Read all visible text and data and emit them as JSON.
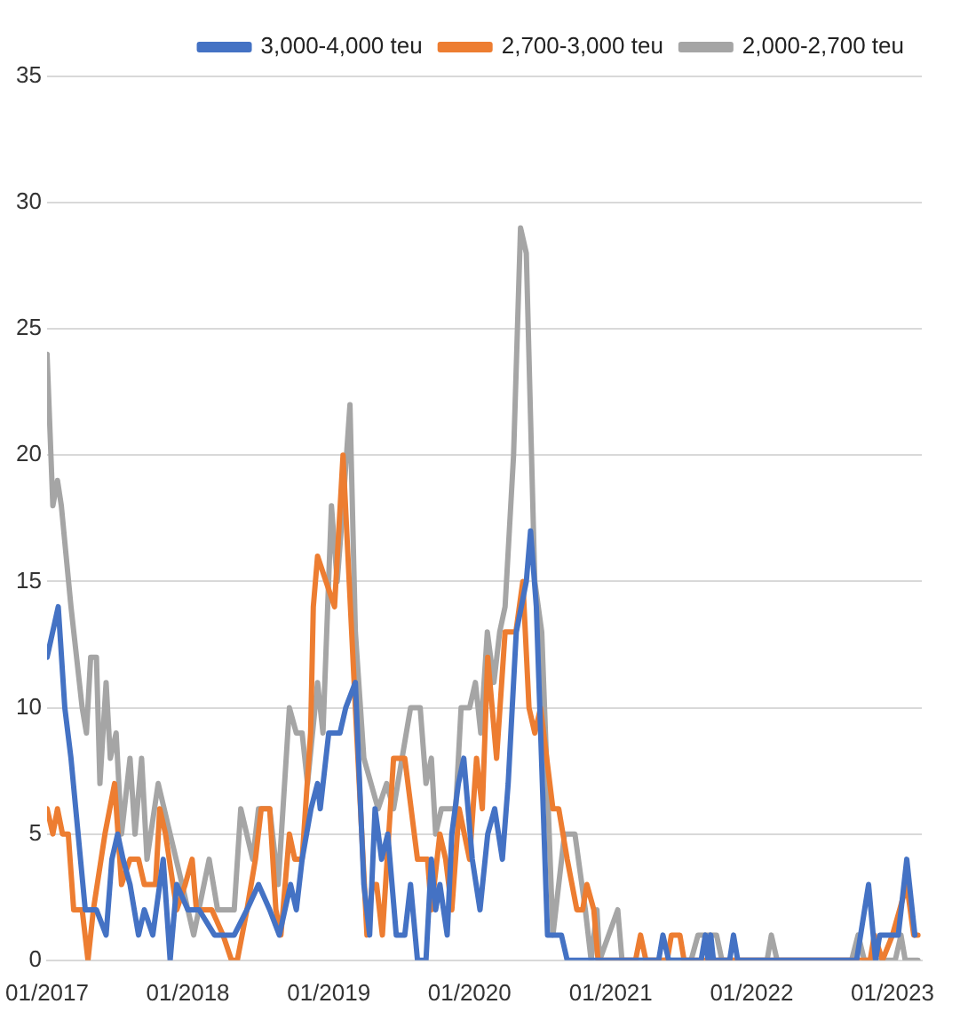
{
  "chart_data": {
    "type": "line",
    "legend": "top right",
    "grid": "y",
    "marker": "none",
    "line_style": "solid",
    "xlim": [
      "2017-01",
      "2023-03-18"
    ],
    "xticks": [
      {
        "value": "2017-01",
        "label": "01/2017"
      },
      {
        "value": "2018-01",
        "label": "01/2018"
      },
      {
        "value": "2019-01",
        "label": "01/2019"
      },
      {
        "value": "2020-01",
        "label": "01/2020"
      },
      {
        "value": "2021-01",
        "label": "01/2021"
      },
      {
        "value": "2022-01",
        "label": "01/2022"
      },
      {
        "value": "2023-01",
        "label": "01/2023"
      }
    ],
    "ylim": [
      0,
      35
    ],
    "yticks": [
      0,
      5,
      10,
      15,
      20,
      25,
      30,
      35
    ],
    "series": [
      {
        "name": "3,000-4,000 teu",
        "color": "#4472c4",
        "x": [
          "2017-01-01",
          "2017-01-30",
          "2017-02-16",
          "2017-03-04",
          "2017-04-10",
          "2017-05-09",
          "2017-06-03",
          "2017-06-18",
          "2017-07-03",
          "2017-07-17",
          "2017-08-04",
          "2017-08-26",
          "2017-09-10",
          "2017-10-02",
          "2017-10-29",
          "2017-11-16",
          "2017-12-03",
          "2018-01-01",
          "2018-01-30",
          "2018-03-11",
          "2018-05-01",
          "2018-06-03",
          "2018-07-03",
          "2018-08-01",
          "2018-08-26",
          "2018-09-24",
          "2018-10-09",
          "2018-10-24",
          "2018-11-16",
          "2018-12-03",
          "2018-12-10",
          "2019-01-01",
          "2019-01-30",
          "2019-02-14",
          "2019-03-11",
          "2019-04-02",
          "2019-04-17",
          "2019-05-01",
          "2019-05-18",
          "2019-06-03",
          "2019-06-25",
          "2019-07-17",
          "2019-08-01",
          "2019-08-19",
          "2019-09-10",
          "2019-09-24",
          "2019-10-05",
          "2019-10-16",
          "2019-11-04",
          "2019-11-16",
          "2019-12-03",
          "2019-12-17",
          "2020-01-08",
          "2020-01-28",
          "2020-02-17",
          "2020-03-06",
          "2020-03-26",
          "2020-04-10",
          "2020-05-01",
          "2020-05-27",
          "2020-06-07",
          "2020-06-22",
          "2020-07-21",
          "2020-08-26",
          "2020-09-10",
          "2021-05-05",
          "2021-05-16",
          "2021-05-31",
          "2021-08-23",
          "2021-09-03",
          "2021-09-10",
          "2021-09-17",
          "2021-09-24",
          "2021-11-05",
          "2021-11-15",
          "2021-11-26",
          "2022-09-30",
          "2022-10-31",
          "2022-11-18",
          "2022-11-29",
          "2023-01-16",
          "2023-02-07",
          "2023-02-28"
        ],
        "values": [
          12,
          14,
          10,
          8,
          2,
          2,
          1,
          4,
          5,
          4,
          3,
          1,
          2,
          1,
          4,
          0,
          3,
          2,
          2,
          1,
          1,
          2,
          3,
          2,
          1,
          3,
          2,
          4,
          6,
          7,
          6,
          9,
          9,
          10,
          11,
          3,
          1,
          6,
          4,
          5,
          1,
          1,
          3,
          0,
          0,
          4,
          2,
          3,
          1,
          5,
          7,
          8,
          4,
          2,
          5,
          6,
          4,
          7,
          13,
          15,
          17,
          14,
          1,
          1,
          0,
          0,
          1,
          0,
          0,
          1,
          0,
          1,
          0,
          0,
          1,
          0,
          0,
          3,
          0,
          1,
          1,
          4,
          1
        ]
      },
      {
        "name": "2,700-3,000 teu",
        "color": "#ed7d31",
        "x": [
          "2017-01-01",
          "2017-01-16",
          "2017-01-28",
          "2017-02-10",
          "2017-02-25",
          "2017-03-11",
          "2017-04-02",
          "2017-04-17",
          "2017-05-01",
          "2017-05-31",
          "2017-06-25",
          "2017-07-13",
          "2017-08-04",
          "2017-08-26",
          "2017-09-10",
          "2017-10-09",
          "2017-10-20",
          "2017-11-04",
          "2017-12-03",
          "2017-12-25",
          "2018-01-12",
          "2018-01-23",
          "2018-03-04",
          "2018-04-02",
          "2018-04-24",
          "2018-05-09",
          "2018-06-03",
          "2018-06-25",
          "2018-07-10",
          "2018-08-01",
          "2018-08-17",
          "2018-08-30",
          "2018-09-21",
          "2018-10-05",
          "2018-10-24",
          "2018-11-15",
          "2018-11-22",
          "2018-12-03",
          "2018-12-25",
          "2019-01-16",
          "2019-02-07",
          "2019-03-11",
          "2019-04-10",
          "2019-04-24",
          "2019-05-05",
          "2019-05-20",
          "2019-06-18",
          "2019-07-17",
          "2019-08-19",
          "2019-09-14",
          "2019-09-24",
          "2019-10-16",
          "2019-10-31",
          "2019-11-16",
          "2019-12-05",
          "2020-01-01",
          "2020-01-19",
          "2020-02-03",
          "2020-02-17",
          "2020-03-11",
          "2020-04-02",
          "2020-04-30",
          "2020-05-18",
          "2020-06-03",
          "2020-06-18",
          "2020-07-03",
          "2020-08-04",
          "2020-08-19",
          "2020-09-10",
          "2020-10-05",
          "2020-10-20",
          "2020-10-31",
          "2020-11-18",
          "2020-11-29",
          "2021-03-06",
          "2021-03-19",
          "2021-04-02",
          "2021-05-27",
          "2021-06-07",
          "2021-06-29",
          "2021-07-10",
          "2022-11-04",
          "2022-11-15",
          "2022-12-06",
          "2023-01-01",
          "2023-02-07",
          "2023-02-25",
          "2023-03-08"
        ],
        "values": [
          6,
          5,
          6,
          5,
          5,
          2,
          2,
          0,
          2,
          5,
          7,
          3,
          4,
          4,
          3,
          3,
          6,
          5,
          2,
          3,
          4,
          2,
          2,
          1,
          0,
          0,
          2,
          4,
          6,
          6,
          2,
          1,
          5,
          4,
          4,
          9,
          14,
          16,
          15,
          14,
          20,
          10,
          1,
          3,
          3,
          1,
          8,
          8,
          4,
          4,
          2,
          5,
          4,
          2,
          6,
          4,
          8,
          6,
          12,
          8,
          13,
          13,
          15,
          10,
          9,
          10,
          6,
          6,
          4,
          2,
          2,
          3,
          2,
          0,
          0,
          1,
          0,
          0,
          1,
          1,
          0,
          0,
          1,
          0,
          1,
          3,
          1,
          1
        ]
      },
      {
        "name": "2,000-2,700 teu",
        "color": "#a5a5a5",
        "x": [
          "2017-01-01",
          "2017-01-16",
          "2017-01-28",
          "2017-02-07",
          "2017-03-04",
          "2017-04-02",
          "2017-04-13",
          "2017-04-24",
          "2017-05-09",
          "2017-05-18",
          "2017-06-03",
          "2017-06-14",
          "2017-06-29",
          "2017-07-13",
          "2017-08-04",
          "2017-08-17",
          "2017-09-03",
          "2017-09-17",
          "2017-10-16",
          "2017-11-16",
          "2017-12-17",
          "2018-01-16",
          "2018-02-25",
          "2018-03-19",
          "2018-05-01",
          "2018-05-18",
          "2018-06-18",
          "2018-07-03",
          "2018-08-01",
          "2018-08-23",
          "2018-09-21",
          "2018-10-09",
          "2018-10-24",
          "2018-11-07",
          "2018-12-03",
          "2018-12-17",
          "2019-01-08",
          "2019-01-23",
          "2019-02-07",
          "2019-02-25",
          "2019-03-11",
          "2019-04-02",
          "2019-05-09",
          "2019-05-31",
          "2019-06-18",
          "2019-08-01",
          "2019-08-26",
          "2019-09-10",
          "2019-09-24",
          "2019-10-05",
          "2019-10-20",
          "2019-11-26",
          "2019-12-10",
          "2020-01-01",
          "2020-01-16",
          "2020-01-30",
          "2020-02-16",
          "2020-03-04",
          "2020-03-19",
          "2020-04-02",
          "2020-04-24",
          "2020-05-12",
          "2020-05-27",
          "2020-06-18",
          "2020-07-06",
          "2020-08-04",
          "2020-09-03",
          "2020-09-30",
          "2020-10-27",
          "2020-11-11",
          "2020-11-26",
          "2020-12-03",
          "2021-01-19",
          "2021-01-30",
          "2021-07-28",
          "2021-08-15",
          "2021-10-02",
          "2021-10-16",
          "2022-02-10",
          "2022-02-21",
          "2022-03-08",
          "2022-09-17",
          "2022-10-04",
          "2022-10-20",
          "2023-01-08",
          "2023-01-23",
          "2023-02-03",
          "2023-03-08"
        ],
        "values": [
          24,
          18,
          19,
          18,
          14,
          10,
          9,
          12,
          12,
          7,
          11,
          8,
          9,
          5,
          8,
          5,
          8,
          4,
          7,
          5,
          3,
          1,
          4,
          2,
          2,
          6,
          4,
          6,
          6,
          3,
          10,
          9,
          9,
          7,
          11,
          9,
          18,
          15,
          18,
          22,
          13,
          8,
          6,
          7,
          6,
          10,
          10,
          7,
          8,
          5,
          6,
          6,
          10,
          10,
          11,
          9,
          13,
          11,
          13,
          14,
          20,
          29,
          28,
          15,
          13,
          1,
          5,
          5,
          2,
          0,
          2,
          0,
          2,
          0,
          0,
          1,
          1,
          0,
          0,
          1,
          0,
          0,
          1,
          0,
          0,
          1,
          0,
          0
        ]
      }
    ]
  }
}
